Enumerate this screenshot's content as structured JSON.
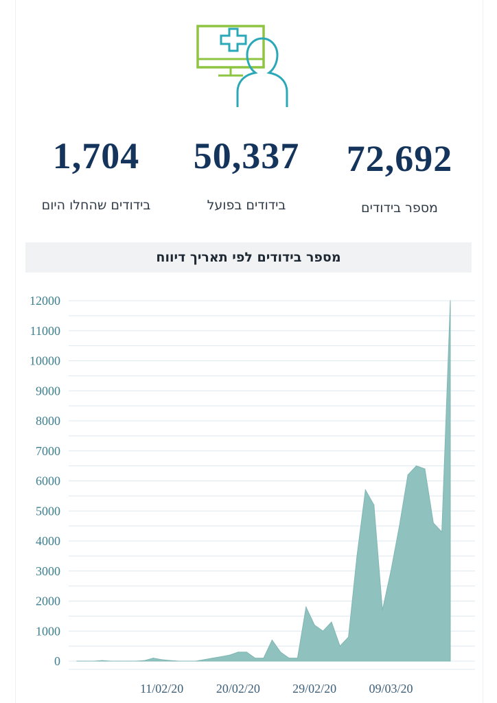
{
  "stats": [
    {
      "value": "72,692",
      "label": "מספר בידודים"
    },
    {
      "value": "50,337",
      "label": "בידודים בפועל"
    },
    {
      "value": "1,704",
      "label": "בידודים שהחלו היום"
    }
  ],
  "icon": {
    "name": "doctor-monitor-icon",
    "colors": {
      "monitor": "#8dc442",
      "person": "#2aa8b7"
    }
  },
  "chart_data": {
    "type": "area",
    "title": "מספר בידודים לפי תאריך דיווח",
    "xlabel": "",
    "ylabel": "",
    "ylim": [
      0,
      12000
    ],
    "yticks": [
      0,
      1000,
      2000,
      3000,
      4000,
      5000,
      6000,
      7000,
      8000,
      9000,
      10000,
      11000,
      12000
    ],
    "xticks": [
      "11/02/20",
      "20/02/20",
      "29/02/20",
      "09/03/20"
    ],
    "grid": true,
    "fill_color": "#8fc2bf",
    "series": [
      {
        "x": [
          "01/02/20",
          "02/02/20",
          "03/02/20",
          "04/02/20",
          "05/02/20",
          "06/02/20",
          "07/02/20",
          "08/02/20",
          "09/02/20",
          "10/02/20",
          "11/02/20",
          "12/02/20",
          "13/02/20",
          "14/02/20",
          "15/02/20",
          "16/02/20",
          "17/02/20",
          "18/02/20",
          "19/02/20",
          "20/02/20",
          "21/02/20",
          "22/02/20",
          "23/02/20",
          "24/02/20",
          "25/02/20",
          "26/02/20",
          "27/02/20",
          "28/02/20",
          "29/02/20",
          "01/03/20",
          "02/03/20",
          "03/03/20",
          "04/03/20",
          "05/03/20",
          "06/03/20",
          "07/03/20",
          "08/03/20",
          "09/03/20",
          "10/03/20",
          "11/03/20",
          "12/03/20",
          "13/03/20",
          "14/03/20",
          "15/03/20",
          "16/03/20"
        ],
        "values": [
          0,
          0,
          0,
          20,
          0,
          0,
          0,
          0,
          20,
          100,
          50,
          20,
          0,
          0,
          0,
          50,
          100,
          150,
          200,
          300,
          300,
          100,
          100,
          700,
          300,
          100,
          100,
          1800,
          1200,
          1000,
          1300,
          500,
          800,
          3500,
          5700,
          5200,
          1700,
          3000,
          4500,
          6200,
          6500,
          6400,
          4600,
          4300,
          12000
        ]
      }
    ]
  }
}
